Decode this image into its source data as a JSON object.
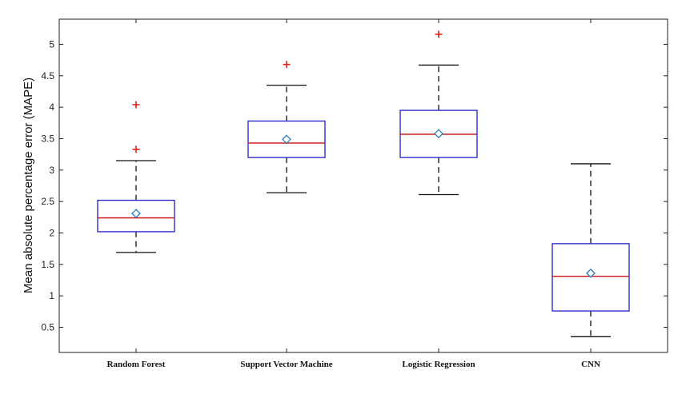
{
  "chart_data": {
    "type": "box",
    "title": "",
    "xlabel": "",
    "ylabel": "Mean absolute percentage error (MAPE)",
    "ylim": [
      0.1,
      5.4
    ],
    "yticks": [
      0.5,
      1,
      1.5,
      2,
      2.5,
      3,
      3.5,
      4,
      4.5,
      5
    ],
    "yticklabels": [
      "0.5",
      "1",
      "1.5",
      "2",
      "2.5",
      "3",
      "3.5",
      "4",
      "4.5",
      "5"
    ],
    "grid": false,
    "legend": "none",
    "categories": [
      "Random Forest",
      "Support Vector Machine",
      "Logistic Regression",
      "CNN"
    ],
    "boxes": [
      {
        "label": "Random Forest",
        "whisker_low": 1.69,
        "q1": 2.02,
        "median": 2.24,
        "q3": 2.52,
        "whisker_high": 3.15,
        "mean": 2.31,
        "outliers": [
          3.33,
          4.04
        ]
      },
      {
        "label": "Support Vector Machine",
        "whisker_low": 2.64,
        "q1": 3.2,
        "median": 3.43,
        "q3": 3.78,
        "whisker_high": 4.35,
        "mean": 3.49,
        "outliers": [
          4.68
        ]
      },
      {
        "label": "Logistic Regression",
        "whisker_low": 2.61,
        "q1": 3.2,
        "median": 3.57,
        "q3": 3.95,
        "whisker_high": 4.67,
        "mean": 3.58,
        "outliers": [
          5.16
        ]
      },
      {
        "label": "CNN",
        "whisker_low": 0.35,
        "q1": 0.76,
        "median": 1.31,
        "q3": 1.83,
        "whisker_high": 3.1,
        "mean": 1.36,
        "outliers": []
      }
    ],
    "colors": {
      "box": "#1f1fcc",
      "median": "#cc2222",
      "whisker": "#111111",
      "mean_marker": "#2a7fbf",
      "outlier": "#e02020",
      "axes": "#222222"
    }
  }
}
